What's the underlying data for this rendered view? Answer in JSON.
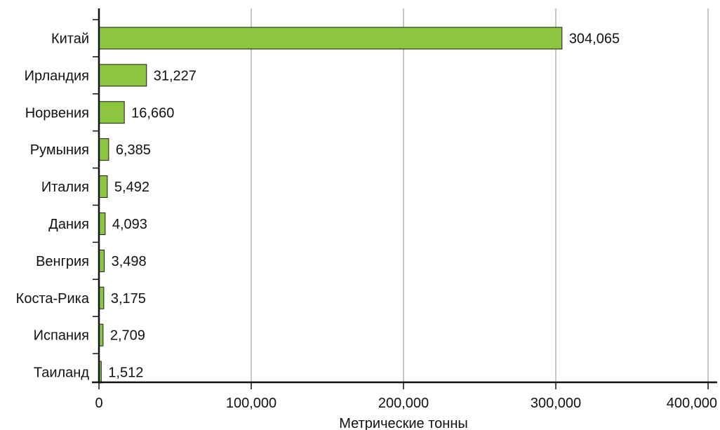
{
  "chart_data": {
    "type": "bar",
    "orientation": "horizontal",
    "title": "",
    "xlabel": "Метрические тонны",
    "ylabel": "",
    "xlim": [
      0,
      400000
    ],
    "x_ticks": [
      0,
      100000,
      200000,
      300000,
      400000
    ],
    "x_tick_labels": [
      "0",
      "100,000",
      "200,000",
      "300,000",
      "400,000"
    ],
    "grid": true,
    "categories": [
      "Китай",
      "Ирландия",
      "Норвения",
      "Румыния",
      "Италия",
      "Дания",
      "Венгрия",
      "Коста-Рика",
      "Испания",
      "Таиланд"
    ],
    "values": [
      304065,
      31227,
      16660,
      6385,
      5492,
      4093,
      3498,
      3175,
      2709,
      1512
    ],
    "value_labels": [
      "304,065",
      "31,227",
      "16,660",
      "6,385",
      "5,492",
      "4,093",
      "3,498",
      "3,175",
      "2,709",
      "1,512"
    ],
    "bar_color": "#8cc63f",
    "bar_stroke": "#1a1a1a",
    "grid_color": "#8c8c8c"
  }
}
